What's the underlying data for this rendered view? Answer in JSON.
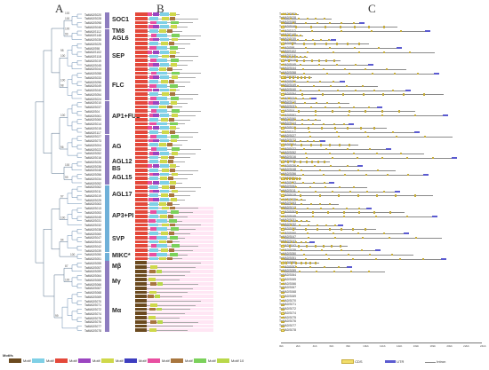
{
  "panels": {
    "a": "A",
    "b": "B",
    "c": "C"
  },
  "groups": [
    {
      "name": "SOC1",
      "color": "#8d7cbf",
      "start": 0,
      "end": 4
    },
    {
      "name": "TM8\nAGL6",
      "color": "#8d7cbf",
      "start": 4,
      "end": 7
    },
    {
      "name": "SEP",
      "color": "#8d7cbf",
      "start": 7,
      "end": 14
    },
    {
      "name": "FLC",
      "color": "#8d7cbf",
      "start": 14,
      "end": 21
    },
    {
      "name": "AP1+FUL",
      "color": "#8d7cbf",
      "start": 21,
      "end": 29
    },
    {
      "name": "AG",
      "color": "#8d7cbf",
      "start": 29,
      "end": 35
    },
    {
      "name": "AGL12\nBS",
      "color": "#8d7cbf",
      "start": 35,
      "end": 38
    },
    {
      "name": "AGL15",
      "color": "#8d7cbf",
      "start": 38,
      "end": 41
    },
    {
      "name": "AGL17",
      "color": "#6fb0d8",
      "start": 41,
      "end": 46
    },
    {
      "name": "AP3+PI",
      "color": "#6fb0d8",
      "start": 46,
      "end": 51
    },
    {
      "name": "SVP",
      "color": "#6fb0d8",
      "start": 51,
      "end": 57
    },
    {
      "name": "MIKC*",
      "color": "#6fb0d8",
      "start": 57,
      "end": 59
    },
    {
      "name": "Mβ",
      "color": "#8d7cbf",
      "start": 59,
      "end": 62
    },
    {
      "name": "Mγ",
      "color": "#8d7cbf",
      "start": 62,
      "end": 66
    },
    {
      "name": "Mα",
      "color": "#8d7cbf",
      "start": 66,
      "end": 76
    }
  ],
  "genes": [
    "TaMADS020",
    "TaMADS028",
    "TaMADS098",
    "TaMADS046",
    "TaMADS112",
    "TaMADS148",
    "TaMADS035",
    "TaMADS025",
    "TaMADS98",
    "TaMADS102",
    "TaMADS118",
    "TaMADS019",
    "TaMADS045",
    "TaMADS044",
    "TaMADS058",
    "TaMADS033",
    "TaMADS096",
    "TaMADS049",
    "TaMADS040",
    "TaMADS054",
    "TaMADS024",
    "TaMADS010",
    "TaMADS037",
    "TaMADS04",
    "TaMADS061",
    "TaMADS060",
    "TaMADS014",
    "TaMADS015",
    "TaMADS117",
    "TaMADS027",
    "TaMADS073",
    "TaMADS004",
    "TaMADS022",
    "TaMADS052",
    "TaMADS016",
    "TaMADS026",
    "TaMADS036",
    "TaMADS048",
    "TaMADS056",
    "TaMADS034",
    "TaMADS052",
    "TaMADS062",
    "TaMADS011",
    "TaMADS019",
    "TaMADS025",
    "TaMADS063",
    "TaMADS013",
    "TaMADS053",
    "TaMADS045",
    "TaMADS031",
    "TaMADS032",
    "TaMADS038",
    "TaMADS060",
    "TaMADS047",
    "TaMADS043",
    "TaMADS042",
    "TaMADS039",
    "TaMADS050",
    "TaMADS051",
    "TaMADS055",
    "TaMADS057",
    "TaMADS059",
    "TaMADS064",
    "TaMADS065",
    "TaMADS066",
    "TaMADS067",
    "TaMADS068",
    "TaMADS069",
    "TaMADS070",
    "TaMADS071",
    "TaMADS072",
    "TaMADS074",
    "TaMADS075",
    "TaMADS076",
    "TaMADS077",
    "TaMADS078"
  ],
  "bootstrap": [
    "100",
    "99",
    "100",
    "98",
    "100",
    "96",
    "100",
    "99",
    "97",
    "100",
    "94",
    "100",
    "87",
    "100",
    "99",
    "100",
    "100",
    "98",
    "100"
  ],
  "motif_legend": {
    "title": "Motifs",
    "items": [
      {
        "label": "Motif 1",
        "color": "#6b4a1f"
      },
      {
        "label": "Motif 2",
        "color": "#7fd0e6"
      },
      {
        "label": "Motif 3",
        "color": "#e4483a"
      },
      {
        "label": "Motif 4",
        "color": "#9b45c0"
      },
      {
        "label": "Motif 5",
        "color": "#cfd84a"
      },
      {
        "label": "Motif 6",
        "color": "#3d3dbf"
      },
      {
        "label": "Motif 7",
        "color": "#e84fa1"
      },
      {
        "label": "Motif 8",
        "color": "#a8763e"
      },
      {
        "label": "Motif 9",
        "color": "#7bd15b"
      },
      {
        "label": "Motif 10",
        "color": "#b9d84a"
      }
    ]
  },
  "structure_legend": {
    "cds": "CDS",
    "utr": "UTR",
    "intron": "Intron"
  },
  "axis_ticks": [
    "0kb",
    "2kb",
    "4kb",
    "6kb",
    "8kb",
    "10kb",
    "12kb",
    "14kb",
    "16kb",
    "18kb",
    "20kb",
    "22kb",
    "24kb"
  ]
}
